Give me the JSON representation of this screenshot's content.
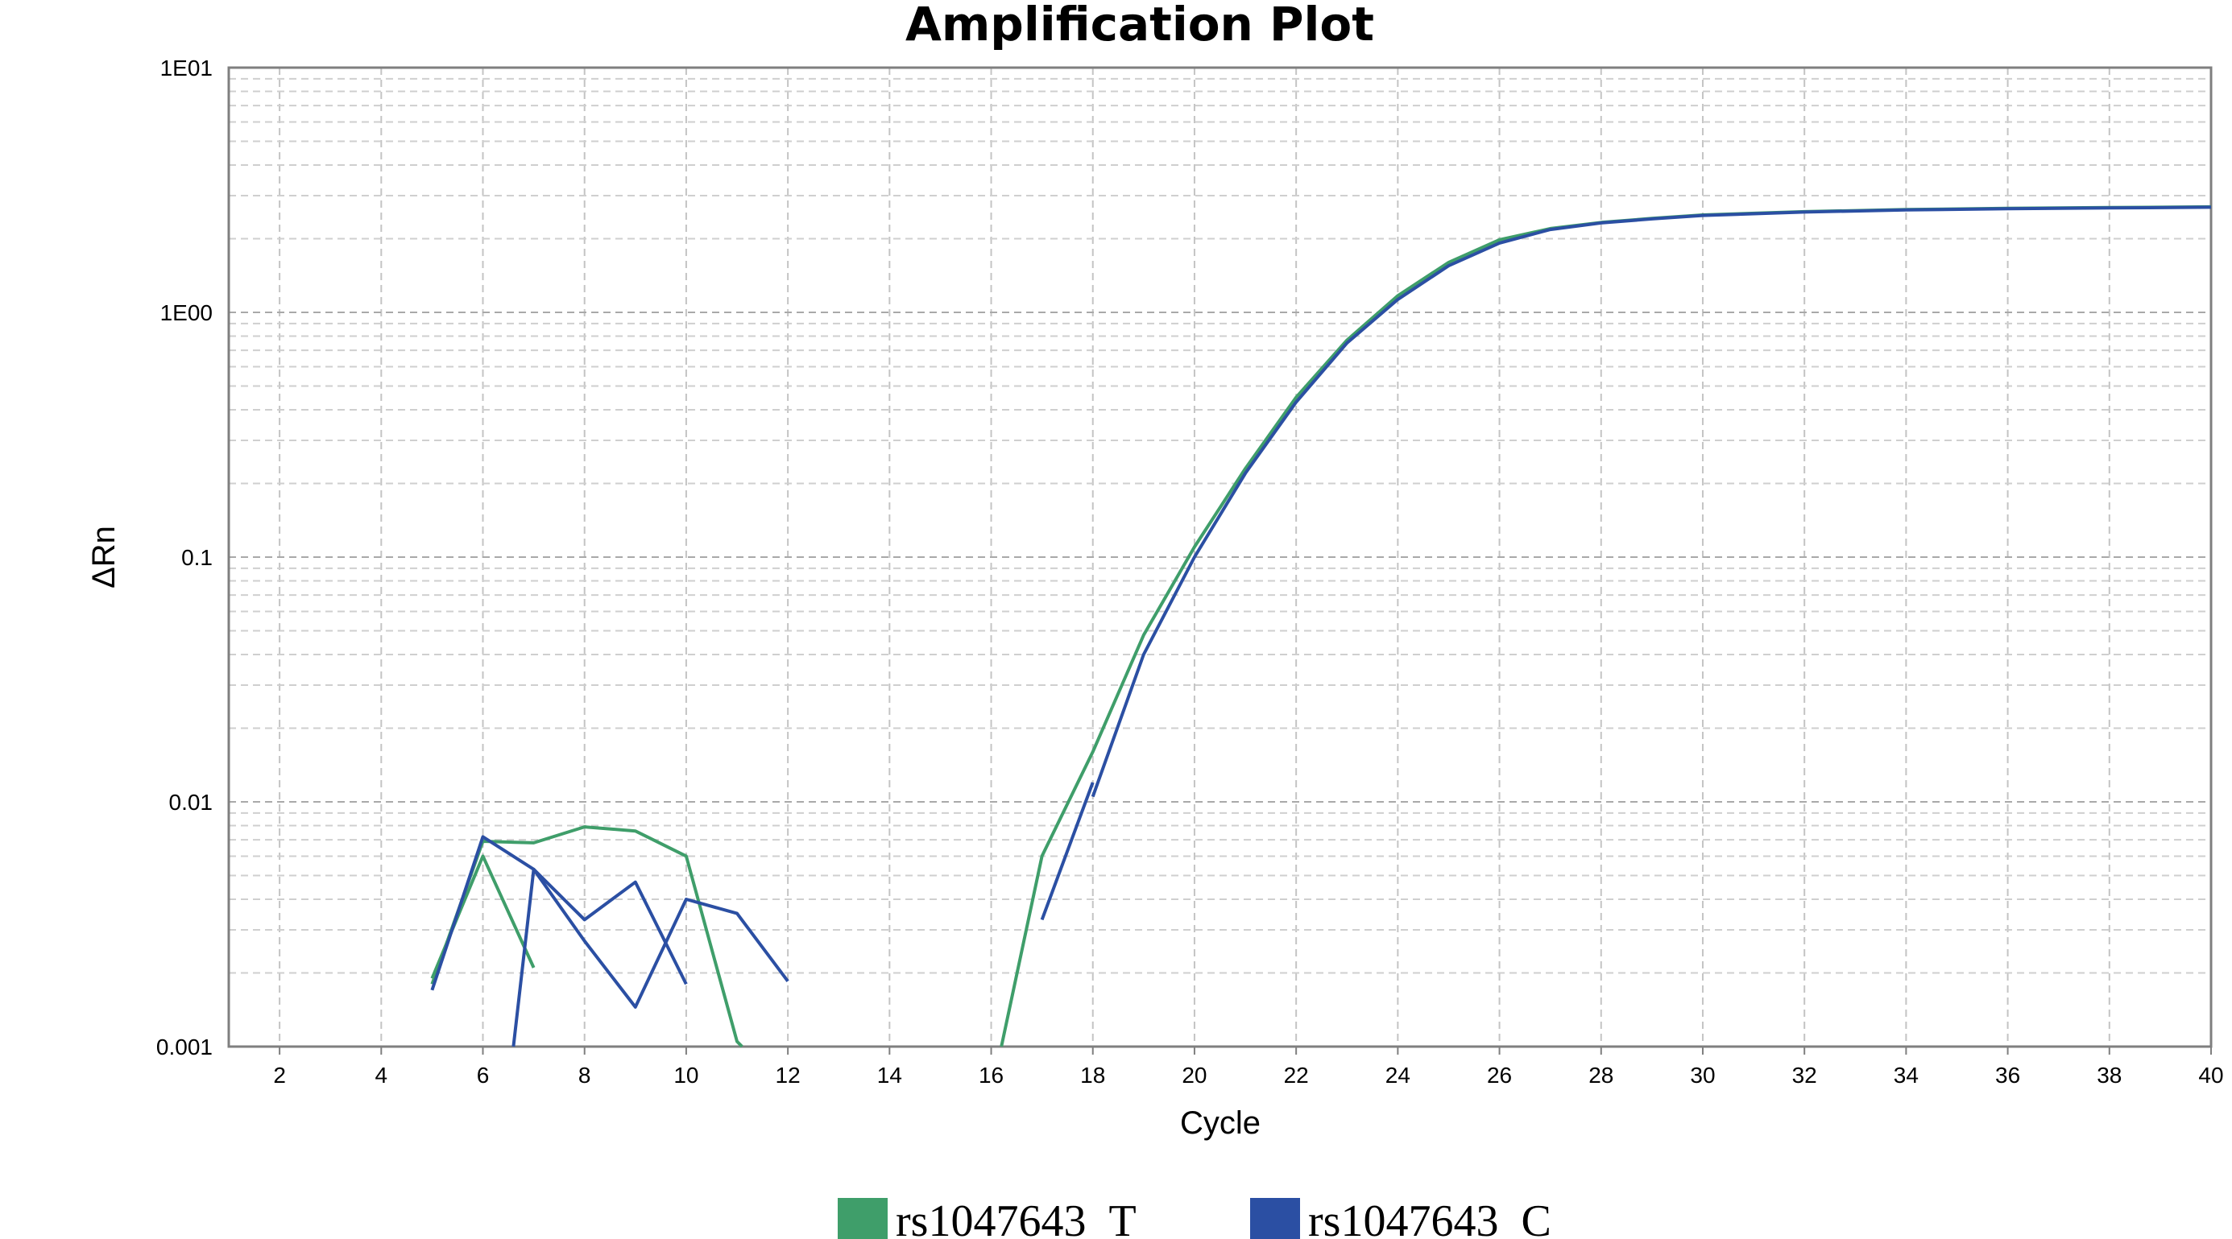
{
  "chart_data": {
    "type": "line",
    "title": "Amplification Plot",
    "xlabel": "Cycle",
    "ylabel": "ΔRn",
    "xlim": [
      1,
      40
    ],
    "ylim": [
      0.001,
      10
    ],
    "yscale": "log",
    "grid": true,
    "legend_position": "bottom",
    "x_ticks": [
      "2",
      "4",
      "6",
      "8",
      "10",
      "12",
      "14",
      "16",
      "18",
      "20",
      "22",
      "24",
      "26",
      "28",
      "30",
      "32",
      "34",
      "36",
      "38",
      "40"
    ],
    "y_ticks": [
      "0.001",
      "0.01",
      "0.1",
      "1E00",
      "1E01"
    ],
    "series": [
      {
        "name": "rs1047643_T",
        "color": "#3f9e6a",
        "segments": [
          [
            [
              5,
              0.0019
            ],
            [
              6,
              0.006
            ],
            [
              7,
              0.0021
            ]
          ],
          [
            [
              5,
              0.0018
            ],
            [
              6,
              0.0069
            ],
            [
              7,
              0.0068
            ],
            [
              8,
              0.0079
            ],
            [
              9,
              0.0076
            ],
            [
              10,
              0.006
            ],
            [
              11,
              0.00105
            ],
            [
              11.1,
              0.001
            ]
          ],
          [
            [
              16.2,
              0.001
            ],
            [
              17,
              0.006
            ],
            [
              18,
              0.016
            ],
            [
              19,
              0.048
            ],
            [
              20,
              0.11
            ],
            [
              21,
              0.23
            ],
            [
              22,
              0.45
            ],
            [
              23,
              0.77
            ],
            [
              24,
              1.17
            ],
            [
              25,
              1.6
            ],
            [
              26,
              1.98
            ],
            [
              27,
              2.2
            ],
            [
              28,
              2.33
            ],
            [
              29,
              2.42
            ],
            [
              30,
              2.5
            ],
            [
              32,
              2.58
            ],
            [
              34,
              2.63
            ],
            [
              36,
              2.66
            ],
            [
              38,
              2.68
            ],
            [
              40,
              2.7
            ]
          ]
        ]
      },
      {
        "name": "rs1047643_C",
        "color": "#2b4fa3",
        "segments": [
          [
            [
              5,
              0.0017
            ],
            [
              6,
              0.0072
            ],
            [
              7,
              0.0053
            ],
            [
              8,
              0.0027
            ],
            [
              9,
              0.00145
            ],
            [
              10,
              0.004
            ],
            [
              11,
              0.0035
            ],
            [
              12,
              0.00185
            ]
          ],
          [
            [
              6.6,
              0.001
            ],
            [
              7,
              0.0053
            ],
            [
              8,
              0.0033
            ],
            [
              9,
              0.0047
            ],
            [
              10,
              0.0018
            ]
          ],
          [
            [
              17,
              0.0033
            ],
            [
              18,
              0.012
            ]
          ],
          [
            [
              18,
              0.0105
            ],
            [
              19,
              0.04
            ],
            [
              20,
              0.1
            ],
            [
              21,
              0.22
            ],
            [
              22,
              0.43
            ],
            [
              23,
              0.75
            ],
            [
              24,
              1.13
            ],
            [
              25,
              1.55
            ],
            [
              26,
              1.92
            ],
            [
              27,
              2.18
            ],
            [
              28,
              2.32
            ],
            [
              29,
              2.41
            ],
            [
              30,
              2.49
            ],
            [
              32,
              2.57
            ],
            [
              34,
              2.62
            ],
            [
              36,
              2.65
            ],
            [
              38,
              2.67
            ],
            [
              40,
              2.69
            ]
          ]
        ]
      }
    ]
  }
}
